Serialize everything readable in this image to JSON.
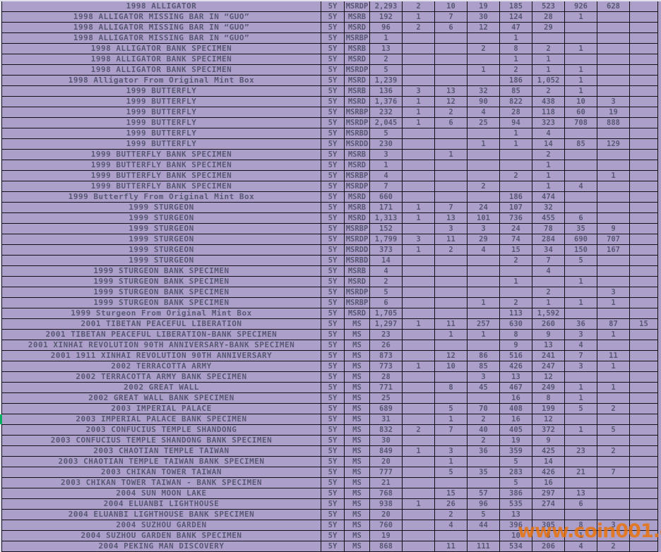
{
  "colors": {
    "background": "#aca0ca",
    "grid": "#101016",
    "text": "#585874",
    "edge_gutter": "#e2e0ea",
    "selection_green": "#00af5f",
    "watermark_orange": "#ee7000"
  },
  "watermark": {
    "text": "www.coin001.com"
  },
  "selection": {
    "marker_row_index": 39
  },
  "table": {
    "rows": [
      {
        "name": "1998 ALLIGATOR",
        "period": "5Y",
        "grade": "MSRDP",
        "values": [
          "2,293",
          "2",
          "10",
          "19",
          "185",
          "523",
          "926",
          "628",
          ""
        ]
      },
      {
        "name": "1998 ALLIGATOR MISSING BAR IN “GUO”",
        "period": "5Y",
        "grade": "MSRB",
        "values": [
          "192",
          "1",
          "7",
          "30",
          "124",
          "28",
          "1",
          "",
          ""
        ]
      },
      {
        "name": "1998 ALLIGATOR MISSING BAR IN “GUO”",
        "period": "5Y",
        "grade": "MSRD",
        "values": [
          "96",
          "2",
          "6",
          "12",
          "47",
          "29",
          "",
          "",
          ""
        ]
      },
      {
        "name": "1998 ALLIGATOR MISSING BAR IN “GUO”",
        "period": "5Y",
        "grade": "MSRBP",
        "values": [
          "1",
          "",
          "",
          "",
          "1",
          "",
          "",
          "",
          ""
        ]
      },
      {
        "name": "1998 ALLIGATOR BANK SPECIMEN",
        "period": "5Y",
        "grade": "MSRB",
        "values": [
          "13",
          "",
          "",
          "2",
          "8",
          "2",
          "1",
          "",
          ""
        ]
      },
      {
        "name": "1998 ALLIGATOR BANK SPECIMEN",
        "period": "5Y",
        "grade": "MSRD",
        "values": [
          "2",
          "",
          "",
          "",
          "1",
          "1",
          "",
          "",
          ""
        ]
      },
      {
        "name": "1998 ALLIGATOR BANK SPECIMEN",
        "period": "5Y",
        "grade": "MSRDP",
        "values": [
          "5",
          "",
          "",
          "1",
          "2",
          "1",
          "1",
          "",
          ""
        ]
      },
      {
        "name": "1998 Alligator From Original Mint Box",
        "period": "5Y",
        "grade": "MSRD",
        "values": [
          "1,239",
          "",
          "",
          "",
          "186",
          "1,052",
          "1",
          "",
          ""
        ]
      },
      {
        "name": "1999 BUTTERFLY",
        "period": "5Y",
        "grade": "MSRB",
        "values": [
          "136",
          "3",
          "13",
          "32",
          "85",
          "2",
          "1",
          "",
          ""
        ]
      },
      {
        "name": "1999 BUTTERFLY",
        "period": "5Y",
        "grade": "MSRD",
        "values": [
          "1,376",
          "1",
          "12",
          "90",
          "822",
          "438",
          "10",
          "3",
          ""
        ]
      },
      {
        "name": "1999 BUTTERFLY",
        "period": "5Y",
        "grade": "MSRBP",
        "values": [
          "232",
          "1",
          "2",
          "4",
          "28",
          "118",
          "60",
          "19",
          ""
        ]
      },
      {
        "name": "1999 BUTTERFLY",
        "period": "5Y",
        "grade": "MSRDP",
        "values": [
          "2,045",
          "1",
          "6",
          "25",
          "94",
          "323",
          "708",
          "888",
          ""
        ]
      },
      {
        "name": "1999 BUTTERFLY",
        "period": "5Y",
        "grade": "MSRBD",
        "values": [
          "5",
          "",
          "",
          "",
          "1",
          "4",
          "",
          "",
          ""
        ]
      },
      {
        "name": "1999 BUTTERFLY",
        "period": "5Y",
        "grade": "MSRDD",
        "values": [
          "230",
          "",
          "",
          "1",
          "1",
          "14",
          "85",
          "129",
          ""
        ]
      },
      {
        "name": "1999 BUTTERFLY BANK SPECIMEN",
        "period": "5Y",
        "grade": "MSRB",
        "values": [
          "3",
          "",
          "1",
          "",
          "",
          "2",
          "",
          "",
          ""
        ]
      },
      {
        "name": "1999 BUTTERFLY BANK SPECIMEN",
        "period": "5Y",
        "grade": "MSRD",
        "values": [
          "1",
          "",
          "",
          "",
          "",
          "1",
          "",
          "",
          ""
        ]
      },
      {
        "name": "1999 BUTTERFLY BANK SPECIMEN",
        "period": "5Y",
        "grade": "MSRBP",
        "values": [
          "4",
          "",
          "",
          "",
          "2",
          "1",
          "",
          "1",
          ""
        ]
      },
      {
        "name": "1999 BUTTERFLY BANK SPECIMEN",
        "period": "5Y",
        "grade": "MSRDP",
        "values": [
          "7",
          "",
          "",
          "2",
          "",
          "1",
          "4",
          "",
          ""
        ]
      },
      {
        "name": "1999 Butterfly From Original Mint Box",
        "period": "5Y",
        "grade": "MSRD",
        "values": [
          "660",
          "",
          "",
          "",
          "186",
          "474",
          "",
          "",
          ""
        ]
      },
      {
        "name": "1999 STURGEON",
        "period": "5Y",
        "grade": "MSRB",
        "values": [
          "171",
          "1",
          "7",
          "24",
          "107",
          "32",
          "",
          "",
          ""
        ]
      },
      {
        "name": "1999 STURGEON",
        "period": "5Y",
        "grade": "MSRD",
        "values": [
          "1,313",
          "1",
          "13",
          "101",
          "736",
          "455",
          "6",
          "",
          ""
        ]
      },
      {
        "name": "1999 STURGEON",
        "period": "5Y",
        "grade": "MSRBP",
        "values": [
          "152",
          "",
          "3",
          "3",
          "24",
          "78",
          "35",
          "9",
          ""
        ]
      },
      {
        "name": "1999 STURGEON",
        "period": "5Y",
        "grade": "MSRDP",
        "values": [
          "1,799",
          "3",
          "11",
          "29",
          "74",
          "284",
          "690",
          "707",
          ""
        ]
      },
      {
        "name": "1999 STURGEON",
        "period": "5Y",
        "grade": "MSRDD",
        "values": [
          "373",
          "1",
          "2",
          "4",
          "15",
          "34",
          "150",
          "167",
          ""
        ]
      },
      {
        "name": "1999 STURGEON",
        "period": "5Y",
        "grade": "MSRBD",
        "values": [
          "14",
          "",
          "",
          "",
          "2",
          "7",
          "5",
          "",
          ""
        ]
      },
      {
        "name": "1999 STURGEON BANK SPECIMEN",
        "period": "5Y",
        "grade": "MSRB",
        "values": [
          "4",
          "",
          "",
          "",
          "",
          "4",
          "",
          "",
          ""
        ]
      },
      {
        "name": "1999 STURGEON BANK SPECIMEN",
        "period": "5Y",
        "grade": "MSRD",
        "values": [
          "2",
          "",
          "",
          "",
          "1",
          "",
          "1",
          "",
          ""
        ]
      },
      {
        "name": "1999 STURGEON BANK SPECIMEN",
        "period": "5Y",
        "grade": "MSRDP",
        "values": [
          "5",
          "",
          "",
          "",
          "",
          "2",
          "",
          "3",
          ""
        ]
      },
      {
        "name": "1999 STURGEON BANK SPECIMEN",
        "period": "5Y",
        "grade": "MSRBP",
        "values": [
          "6",
          "",
          "",
          "1",
          "2",
          "1",
          "1",
          "1",
          ""
        ]
      },
      {
        "name": "1999 Sturgeon From Original Mint Box",
        "period": "5Y",
        "grade": "MSRD",
        "values": [
          "1,705",
          "",
          "",
          "",
          "113",
          "1,592",
          "",
          "",
          ""
        ]
      },
      {
        "name": "2001 TIBETAN PEACEFUL LIBERATION",
        "period": "5Y",
        "grade": "MS",
        "values": [
          "1,297",
          "1",
          "11",
          "257",
          "630",
          "260",
          "36",
          "87",
          "15"
        ]
      },
      {
        "name": "2001 TIBETAN PEACEFUL LIBERATION-BANK SPECIMEN",
        "period": "5Y",
        "grade": "MS",
        "values": [
          "23",
          "",
          "1",
          "1",
          "8",
          "9",
          "3",
          "1",
          ""
        ]
      },
      {
        "name": "2001 XINHAI REVOLUTION 90TH ANNIVERSARY-BANK SPECIMEN",
        "period": "5Y",
        "grade": "MS",
        "values": [
          "26",
          "",
          "",
          "",
          "9",
          "13",
          "4",
          "",
          ""
        ]
      },
      {
        "name": "2001 1911 XINHAI REVOLUTION 90TH ANNIVERSARY",
        "period": "5Y",
        "grade": "MS",
        "values": [
          "873",
          "",
          "12",
          "86",
          "516",
          "241",
          "7",
          "11",
          ""
        ]
      },
      {
        "name": "2002 TERRACOTTA ARMY",
        "period": "5Y",
        "grade": "MS",
        "values": [
          "773",
          "1",
          "10",
          "85",
          "426",
          "247",
          "3",
          "1",
          ""
        ]
      },
      {
        "name": "2002 TERRACOTTA ARMY BANK SPECIMEN",
        "period": "5Y",
        "grade": "MS",
        "values": [
          "28",
          "",
          "",
          "3",
          "13",
          "12",
          "",
          "",
          ""
        ]
      },
      {
        "name": "2002 GREAT WALL",
        "period": "5Y",
        "grade": "MS",
        "values": [
          "771",
          "",
          "8",
          "45",
          "467",
          "249",
          "1",
          "1",
          ""
        ]
      },
      {
        "name": "2002 GREAT WALL BANK SPECIMEN",
        "period": "5Y",
        "grade": "MS",
        "values": [
          "25",
          "",
          "",
          "",
          "16",
          "8",
          "1",
          "",
          ""
        ]
      },
      {
        "name": "2003 IMPERIAL PALACE",
        "period": "5Y",
        "grade": "MS",
        "values": [
          "689",
          "",
          "5",
          "70",
          "408",
          "199",
          "5",
          "2",
          ""
        ]
      },
      {
        "name": "2003 IMPERIAL PALACE BANK SPECIMEN",
        "period": "5Y",
        "grade": "MS",
        "values": [
          "31",
          "",
          "1",
          "2",
          "16",
          "12",
          "",
          "",
          ""
        ]
      },
      {
        "name": "2003 CONFUCIUS TEMPLE SHANDONG",
        "period": "5Y",
        "grade": "MS",
        "values": [
          "832",
          "2",
          "7",
          "40",
          "405",
          "372",
          "1",
          "5",
          ""
        ]
      },
      {
        "name": "2003 CONFUCIUS TEMPLE SHANDONG BANK SPECIMEN",
        "period": "5Y",
        "grade": "MS",
        "values": [
          "30",
          "",
          "",
          "2",
          "19",
          "9",
          "",
          "",
          ""
        ]
      },
      {
        "name": "2003 CHAOTIAN TEMPLE TAIWAN",
        "period": "5Y",
        "grade": "MS",
        "values": [
          "849",
          "1",
          "3",
          "36",
          "359",
          "425",
          "23",
          "2",
          ""
        ]
      },
      {
        "name": "2003 CHAOTIAN TEMPLE TAIWAN BANK SPECIMEN",
        "period": "5Y",
        "grade": "MS",
        "values": [
          "20",
          "",
          "1",
          "",
          "5",
          "14",
          "",
          "",
          ""
        ]
      },
      {
        "name": "2003 CHIKAN TOWER TAIWAN",
        "period": "5Y",
        "grade": "MS",
        "values": [
          "777",
          "",
          "5",
          "35",
          "283",
          "426",
          "21",
          "7",
          ""
        ]
      },
      {
        "name": "2003 CHIKAN TOWER TAIWAN - BANK SPECIMEN",
        "period": "5Y",
        "grade": "MS",
        "values": [
          "21",
          "",
          "",
          "",
          "5",
          "16",
          "",
          "",
          ""
        ]
      },
      {
        "name": "2004 SUN MOON LAKE",
        "period": "5Y",
        "grade": "MS",
        "values": [
          "768",
          "",
          "15",
          "57",
          "386",
          "297",
          "13",
          "",
          ""
        ]
      },
      {
        "name": "2004 ELUANBI LIGHTHOUSE",
        "period": "5Y",
        "grade": "MS",
        "values": [
          "938",
          "1",
          "26",
          "96",
          "535",
          "274",
          "6",
          "",
          ""
        ]
      },
      {
        "name": "2004 ELUANBI LIGHTHOUSE BANK SPECIMEN",
        "period": "5Y",
        "grade": "MS",
        "values": [
          "20",
          "",
          "2",
          "5",
          "13",
          "",
          "",
          "",
          ""
        ]
      },
      {
        "name": "2004 SUZHOU GARDEN",
        "period": "5Y",
        "grade": "MS",
        "values": [
          "760",
          "",
          "4",
          "44",
          "396",
          "305",
          "8",
          "3",
          ""
        ]
      },
      {
        "name": "2004 SUZHOU GARDEN BANK SPECIMEN",
        "period": "5Y",
        "grade": "MS",
        "values": [
          "19",
          "",
          "",
          "",
          "10",
          "8",
          "1",
          "",
          ""
        ]
      },
      {
        "name": "2004 PEKING MAN DISCOVERY",
        "period": "5Y",
        "grade": "MS",
        "values": [
          "868",
          "",
          "11",
          "111",
          "534",
          "206",
          "4",
          "2",
          ""
        ]
      }
    ]
  }
}
